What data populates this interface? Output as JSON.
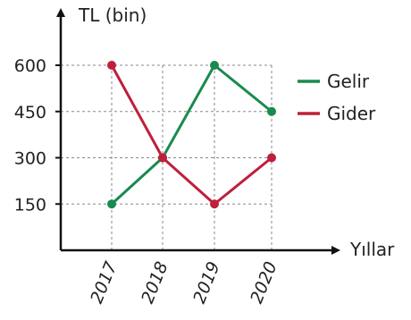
{
  "chart_data": {
    "type": "line",
    "ylabel": "TL (bin)",
    "xlabel": "Yıllar",
    "categories": [
      "2017",
      "2018",
      "2019",
      "2020"
    ],
    "yticks": [
      150,
      300,
      450,
      600
    ],
    "ylim": [
      0,
      750
    ],
    "grid": true,
    "legend": "right",
    "series": [
      {
        "name": "Gelir",
        "color": "#1a8a4f",
        "values": [
          150,
          300,
          600,
          450
        ]
      },
      {
        "name": "Gider",
        "color": "#bf1f3a",
        "values": [
          600,
          300,
          150,
          300
        ]
      }
    ]
  }
}
